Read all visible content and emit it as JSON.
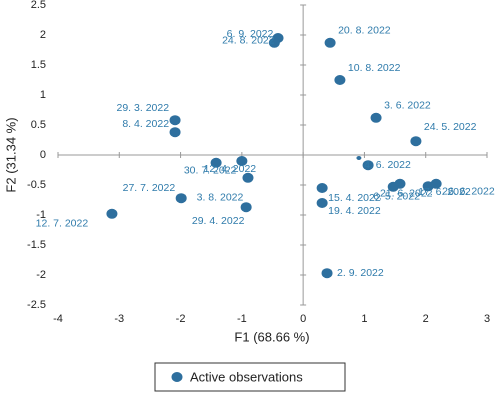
{
  "chart_data": {
    "type": "scatter",
    "x_label": "F1 (68.66 %)",
    "y_label": "F2 (31.34 %)",
    "xlim": [
      -4,
      3
    ],
    "ylim": [
      -2.5,
      2.5
    ],
    "xticks": [
      -4,
      -3,
      -2,
      -1,
      0,
      1,
      2,
      3
    ],
    "yticks": [
      -2.5,
      -2,
      -1.5,
      -1,
      -0.5,
      0,
      0.5,
      1,
      1.5,
      2,
      2.5
    ],
    "series": [
      {
        "name": "Active observations",
        "color": "#2e6f9e",
        "x": [
          -0.41,
          -0.47,
          0.44,
          0.6,
          -2.09,
          -2.09,
          1.19,
          1.84,
          0.91,
          1.06,
          -1.42,
          -1.0,
          -0.9,
          1.58,
          1.47,
          2.04,
          2.17,
          0.31,
          0.31,
          -1.99,
          -0.93,
          -3.12,
          0.39
        ],
        "values": [
          1.95,
          1.87,
          1.87,
          1.25,
          0.58,
          0.38,
          0.62,
          0.23,
          -0.05,
          -0.17,
          -0.13,
          -0.1,
          -0.38,
          -0.48,
          -0.53,
          -0.52,
          -0.48,
          -0.55,
          -0.8,
          -0.72,
          -0.87,
          -0.98,
          -1.97
        ],
        "point_labels": [
          "6. 9. 2022",
          "24. 8. 2022",
          "20. 8. 2022",
          "10. 8. 2022",
          "29. 3. 2022",
          "8. 4. 2022",
          "3. 6. 2022",
          "24. 5. 2022",
          null,
          "4. 6. 2022",
          "30. 7. 2022",
          "12. 4. 2022",
          "3. 8. 2022",
          "21. 6. 2022",
          "6. 5. 2022",
          "17. 6. 2022",
          "26. 6. 2022",
          "15. 4. 2022",
          "19. 4. 2022",
          "27. 7. 2022",
          "29. 4. 2022",
          "12. 7. 2022",
          "2. 9. 2022"
        ]
      }
    ]
  }
}
